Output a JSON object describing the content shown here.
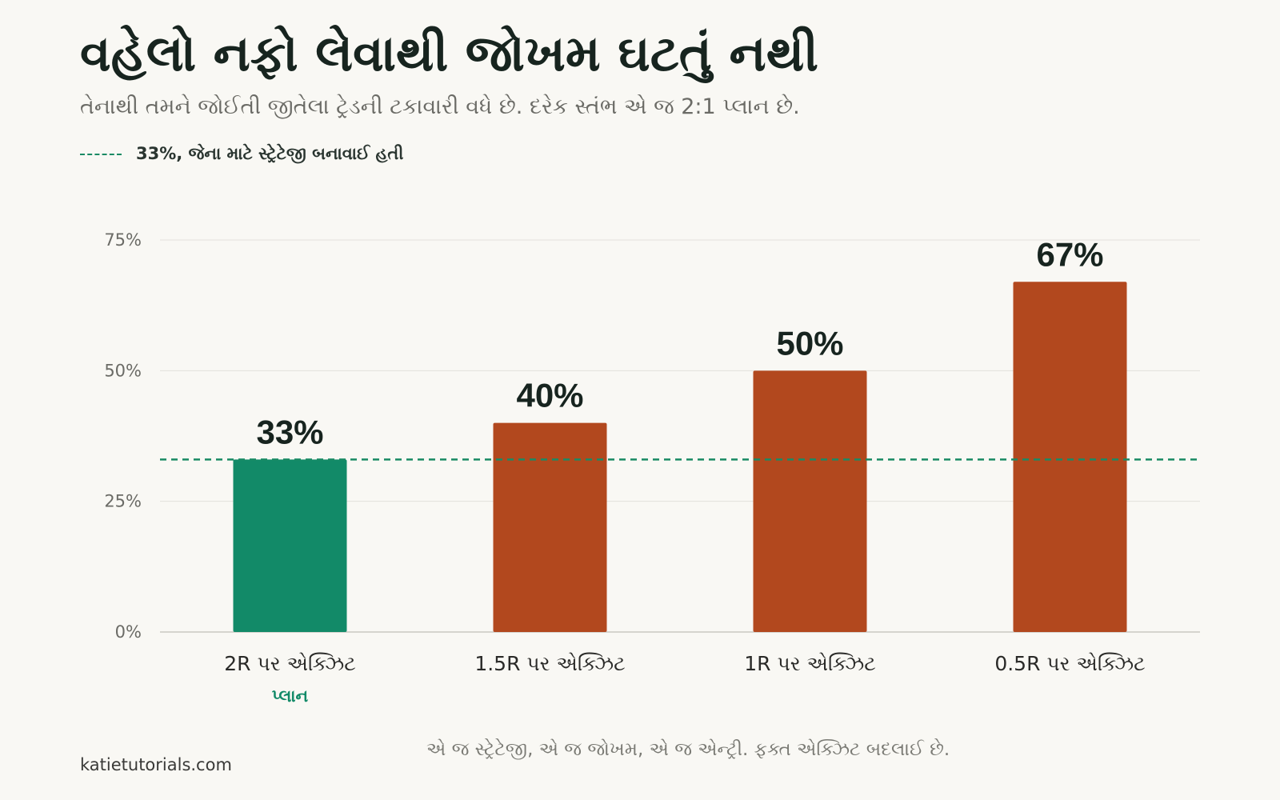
{
  "header": {
    "title": "વહેલો નફો લેવાથી જોખમ ઘટતું નથી",
    "subtitle": "તેનાથી તમને જોઈતી જીતેલા ટ્રેડની ટકાવારી વધે છે. દરેક સ્તંભ એ જ 2:1 પ્લાન છે."
  },
  "legend": {
    "label": "33%, જેના માટે સ્ટ્રેટેજી બનાવાઈ હતી"
  },
  "colors": {
    "plan": "#128a68",
    "other": "#b2481e",
    "reference": "#1a8a64",
    "grid": "#e2e1dc",
    "axis": "#d5d4ce"
  },
  "chart_data": {
    "type": "bar",
    "categories": [
      "2R પર એક્ઝિટ",
      "1.5R પર એક્ઝિટ",
      "1R પર એક્ઝિટ",
      "0.5R પર એક્ઝિટ"
    ],
    "values": [
      33,
      40,
      50,
      67
    ],
    "value_labels": [
      "33%",
      "40%",
      "50%",
      "67%"
    ],
    "highlight_index": 0,
    "highlight_sublabel": "પ્લાન",
    "reference_line": 33,
    "ylim": [
      0,
      75
    ],
    "yticks": [
      0,
      25,
      50,
      75
    ],
    "ytick_labels": [
      "0%",
      "25%",
      "50%",
      "75%"
    ],
    "grid": true
  },
  "footer": {
    "source": "katietutorials.com",
    "note": "એ જ સ્ટ્રેટેજી, એ જ જોખમ, એ જ એન્ટ્રી. ફક્ત એક્ઝિટ બદલાઈ છે."
  }
}
